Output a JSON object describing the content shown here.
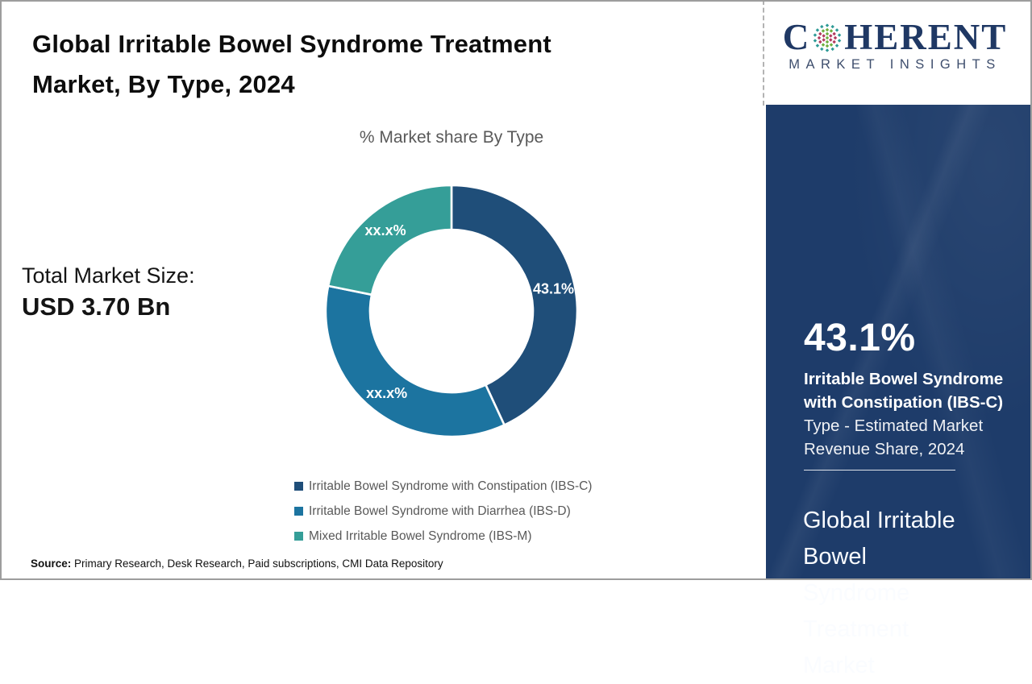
{
  "header": {
    "title": "Global Irritable Bowel Syndrome Treatment\nMarket, By Type, 2024",
    "logo": {
      "word_start": "C",
      "word_end": "HERENT",
      "tagline": "MARKET INSIGHTS",
      "navy": "#1F3864",
      "globe_colors": {
        "teal": "#2E9A96",
        "green": "#6FAE3E",
        "red": "#B23A5E"
      }
    }
  },
  "left_stats": {
    "label": "Total Market Size:",
    "value": "USD 3.70 Bn"
  },
  "chart_data": {
    "type": "pie",
    "subtype": "donut",
    "title": "% Market share By Type",
    "start_angle_deg": 0,
    "direction": "clockwise",
    "inner_radius_ratio": 0.65,
    "legend_position": "bottom",
    "series": [
      {
        "label": "Irritable Bowel Syndrome with Constipation (IBS-C)",
        "value": 43.1,
        "display": "43.1%",
        "color": "#1F4E79"
      },
      {
        "label": "Irritable Bowel Syndrome with Diarrhea (IBS-D)",
        "value": 35.1,
        "display": "xx.x%",
        "color": "#1C74A0"
      },
      {
        "label": "Mixed Irritable Bowel Syndrome (IBS-M)",
        "value": 21.8,
        "display": "xx.x%",
        "color": "#359E98"
      }
    ]
  },
  "side_panel": {
    "background": "#1E3C6A",
    "stat_value": "43.1%",
    "stat_label_bold": "Irritable Bowel Syndrome\nwith Constipation (IBS-C)",
    "stat_label_regular": "Type - Estimated Market\nRevenue Share, 2024",
    "headline": "Global Irritable\nBowel\nSyndrome\nTreatment\nMarket"
  },
  "footer": {
    "source_label": "Source:",
    "source_text": " Primary Research, Desk Research, Paid subscriptions, CMI Data Repository"
  }
}
